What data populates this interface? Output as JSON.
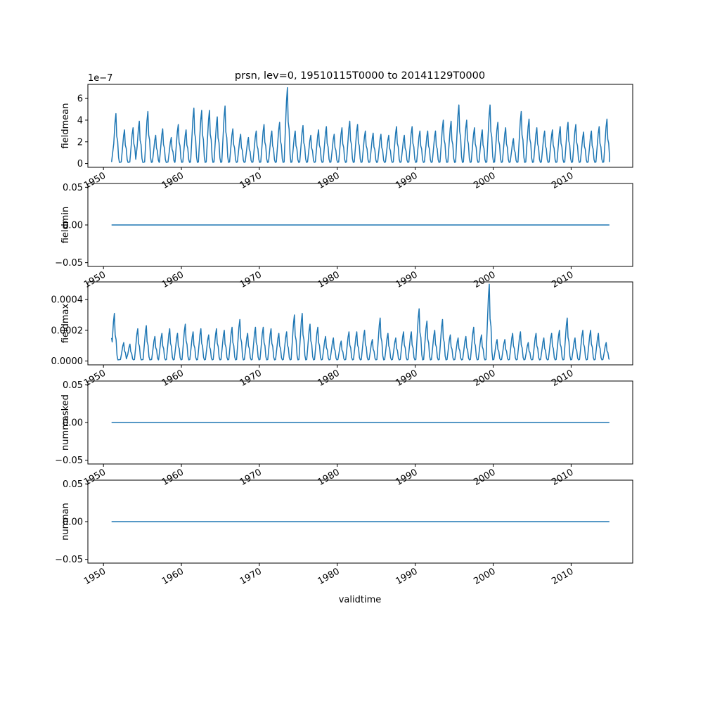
{
  "figure": {
    "title": "prsn, lev=0, 19510115T0000 to 20141129T0000",
    "xlabel": "validtime"
  },
  "colors": {
    "line": "#1f77b4",
    "axis": "#000000",
    "background": "#ffffff"
  },
  "chart_data": [
    {
      "type": "line",
      "ylabel": "fieldmean",
      "x_range": [
        1951.04,
        2014.91
      ],
      "xlim": [
        1948.0,
        2017.9
      ],
      "ylim": [
        -0.35,
        7.3
      ],
      "offset_text": "1e−7",
      "yticks": [
        0,
        2,
        4,
        6
      ],
      "ytick_labels": [
        "0",
        "2",
        "4",
        "6"
      ],
      "xticks": [
        1950,
        1960,
        1970,
        1980,
        1990,
        2000,
        2010
      ],
      "xtick_labels": [
        "1950",
        "1960",
        "1970",
        "1980",
        "1990",
        "2000",
        "2010"
      ],
      "series": [
        {
          "annual_peaks": [
            [
              1951.6,
              4.6
            ],
            [
              1952.7,
              3.1
            ],
            [
              1953.8,
              3.3
            ],
            [
              1954.6,
              3.9
            ],
            [
              1955.7,
              4.8
            ],
            [
              1956.7,
              2.6
            ],
            [
              1957.6,
              3.2
            ],
            [
              1958.7,
              2.4
            ],
            [
              1959.6,
              3.6
            ],
            [
              1960.6,
              3.1
            ],
            [
              1961.6,
              5.1
            ],
            [
              1962.6,
              4.9
            ],
            [
              1963.6,
              4.9
            ],
            [
              1964.6,
              4.3
            ],
            [
              1965.6,
              5.3
            ],
            [
              1966.6,
              3.2
            ],
            [
              1967.6,
              2.7
            ],
            [
              1968.6,
              2.4
            ],
            [
              1969.6,
              3.0
            ],
            [
              1970.6,
              3.6
            ],
            [
              1971.6,
              3.0
            ],
            [
              1972.6,
              3.8
            ],
            [
              1973.6,
              7.0
            ],
            [
              1974.6,
              3.0
            ],
            [
              1975.6,
              3.5
            ],
            [
              1976.6,
              2.6
            ],
            [
              1977.6,
              3.1
            ],
            [
              1978.6,
              3.4
            ],
            [
              1979.6,
              2.7
            ],
            [
              1980.6,
              3.3
            ],
            [
              1981.6,
              3.9
            ],
            [
              1982.6,
              3.6
            ],
            [
              1983.6,
              3.0
            ],
            [
              1984.6,
              2.8
            ],
            [
              1985.6,
              2.7
            ],
            [
              1986.6,
              2.6
            ],
            [
              1987.6,
              3.4
            ],
            [
              1988.6,
              2.6
            ],
            [
              1989.6,
              3.4
            ],
            [
              1990.6,
              3.0
            ],
            [
              1991.6,
              3.0
            ],
            [
              1992.6,
              3.0
            ],
            [
              1993.6,
              4.0
            ],
            [
              1994.6,
              3.9
            ],
            [
              1995.6,
              5.4
            ],
            [
              1996.6,
              4.0
            ],
            [
              1997.6,
              3.3
            ],
            [
              1998.6,
              3.1
            ],
            [
              1999.6,
              5.4
            ],
            [
              2000.6,
              3.8
            ],
            [
              2001.6,
              3.3
            ],
            [
              2002.6,
              2.3
            ],
            [
              2003.6,
              4.8
            ],
            [
              2004.6,
              4.1
            ],
            [
              2005.6,
              3.3
            ],
            [
              2006.6,
              3.0
            ],
            [
              2007.6,
              3.1
            ],
            [
              2008.6,
              3.4
            ],
            [
              2009.6,
              3.8
            ],
            [
              2010.6,
              3.6
            ],
            [
              2011.6,
              2.9
            ],
            [
              2012.6,
              3.0
            ],
            [
              2013.6,
              3.4
            ],
            [
              2014.6,
              4.1
            ]
          ]
        }
      ]
    },
    {
      "type": "line",
      "ylabel": "fieldmin",
      "x_range": [
        1951.04,
        2014.91
      ],
      "xlim": [
        1948.0,
        2017.9
      ],
      "ylim": [
        -0.055,
        0.055
      ],
      "yticks": [
        -0.05,
        0,
        0.05
      ],
      "ytick_labels": [
        "−0.05",
        "0.00",
        "0.05"
      ],
      "xticks": [
        1950,
        1960,
        1970,
        1980,
        1990,
        2000,
        2010
      ],
      "xtick_labels": [
        "1950",
        "1960",
        "1970",
        "1980",
        "1990",
        "2000",
        "2010"
      ],
      "series": [
        {
          "constant": 0
        }
      ]
    },
    {
      "type": "line",
      "ylabel": "fieldmax",
      "x_range": [
        1951.04,
        2014.91
      ],
      "xlim": [
        1948.0,
        2017.9
      ],
      "ylim": [
        -2.5e-05,
        0.000515
      ],
      "yticks": [
        0,
        0.0002,
        0.0004
      ],
      "ytick_labels": [
        "0.0000",
        "0.0002",
        "0.0004"
      ],
      "xticks": [
        1950,
        1960,
        1970,
        1980,
        1990,
        2000,
        2010
      ],
      "xtick_labels": [
        "1950",
        "1960",
        "1970",
        "1980",
        "1990",
        "2000",
        "2010"
      ],
      "series": [
        {
          "start_value": 0.00015,
          "annual_peaks": [
            [
              1951.4,
              0.00031
            ],
            [
              1952.6,
              0.00012
            ],
            [
              1953.4,
              0.00011
            ],
            [
              1954.4,
              0.00021
            ],
            [
              1955.5,
              0.00023
            ],
            [
              1956.6,
              0.00016
            ],
            [
              1957.5,
              0.00018
            ],
            [
              1958.5,
              0.00021
            ],
            [
              1959.5,
              0.00018
            ],
            [
              1960.5,
              0.00024
            ],
            [
              1961.5,
              0.00019
            ],
            [
              1962.5,
              0.00021
            ],
            [
              1963.5,
              0.00017
            ],
            [
              1964.5,
              0.00021
            ],
            [
              1965.5,
              0.0002
            ],
            [
              1966.5,
              0.00022
            ],
            [
              1967.5,
              0.00027
            ],
            [
              1968.5,
              0.00018
            ],
            [
              1969.5,
              0.00022
            ],
            [
              1970.5,
              0.00022
            ],
            [
              1971.5,
              0.00021
            ],
            [
              1972.5,
              0.00018
            ],
            [
              1973.5,
              0.00019
            ],
            [
              1974.5,
              0.0003
            ],
            [
              1975.5,
              0.00031
            ],
            [
              1976.5,
              0.00024
            ],
            [
              1977.5,
              0.00022
            ],
            [
              1978.5,
              0.00016
            ],
            [
              1979.5,
              0.00015
            ],
            [
              1980.5,
              0.00013
            ],
            [
              1981.5,
              0.00019
            ],
            [
              1982.5,
              0.00019
            ],
            [
              1983.5,
              0.0002
            ],
            [
              1984.5,
              0.00014
            ],
            [
              1985.5,
              0.00028
            ],
            [
              1986.5,
              0.00018
            ],
            [
              1987.5,
              0.00015
            ],
            [
              1988.5,
              0.00019
            ],
            [
              1989.5,
              0.00019
            ],
            [
              1990.5,
              0.00034
            ],
            [
              1991.5,
              0.00026
            ],
            [
              1992.5,
              0.0002
            ],
            [
              1993.5,
              0.00027
            ],
            [
              1994.5,
              0.00017
            ],
            [
              1995.5,
              0.00015
            ],
            [
              1996.5,
              0.00016
            ],
            [
              1997.5,
              0.00022
            ],
            [
              1998.5,
              0.00017
            ],
            [
              1999.5,
              0.0005
            ],
            [
              2000.5,
              0.00014
            ],
            [
              2001.5,
              0.00014
            ],
            [
              2002.5,
              0.00018
            ],
            [
              2003.5,
              0.00019
            ],
            [
              2004.5,
              0.00012
            ],
            [
              2005.5,
              0.00018
            ],
            [
              2006.5,
              0.00015
            ],
            [
              2007.5,
              0.00018
            ],
            [
              2008.5,
              0.0002
            ],
            [
              2009.5,
              0.00028
            ],
            [
              2010.5,
              0.00015
            ],
            [
              2011.5,
              0.0002
            ],
            [
              2012.5,
              0.0002
            ],
            [
              2013.5,
              0.00018
            ],
            [
              2014.5,
              0.00012
            ]
          ]
        }
      ]
    },
    {
      "type": "line",
      "ylabel": "nummasked",
      "x_range": [
        1951.04,
        2014.91
      ],
      "xlim": [
        1948.0,
        2017.9
      ],
      "ylim": [
        -0.055,
        0.055
      ],
      "yticks": [
        -0.05,
        0,
        0.05
      ],
      "ytick_labels": [
        "−0.05",
        "0.00",
        "0.05"
      ],
      "xticks": [
        1950,
        1960,
        1970,
        1980,
        1990,
        2000,
        2010
      ],
      "xtick_labels": [
        "1950",
        "1960",
        "1970",
        "1980",
        "1990",
        "2000",
        "2010"
      ],
      "series": [
        {
          "constant": 0
        }
      ]
    },
    {
      "type": "line",
      "ylabel": "numnan",
      "x_range": [
        1951.04,
        2014.91
      ],
      "xlim": [
        1948.0,
        2017.9
      ],
      "ylim": [
        -0.055,
        0.055
      ],
      "yticks": [
        -0.05,
        0,
        0.05
      ],
      "ytick_labels": [
        "−0.05",
        "0.00",
        "0.05"
      ],
      "xticks": [
        1950,
        1960,
        1970,
        1980,
        1990,
        2000,
        2010
      ],
      "xtick_labels": [
        "1950",
        "1960",
        "1970",
        "1980",
        "1990",
        "2000",
        "2010"
      ],
      "series": [
        {
          "constant": 0
        }
      ]
    }
  ]
}
